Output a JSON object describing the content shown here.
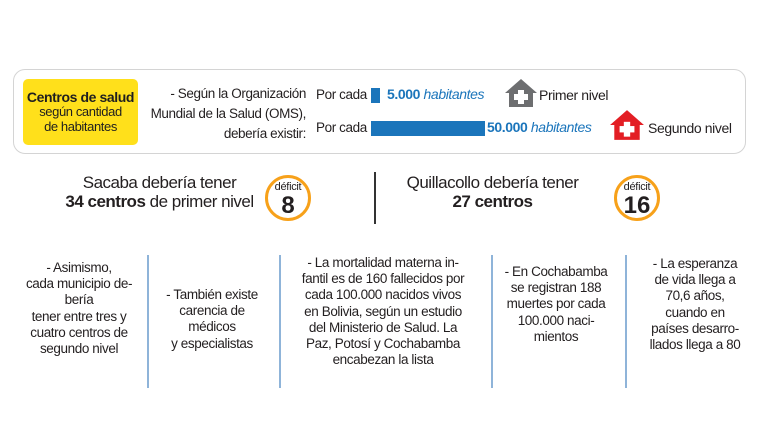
{
  "header": {
    "box_title": "Centros de salud",
    "box_sub1": "según cantidad",
    "box_sub2": "de habitantes",
    "oms_line1": "- Según la Organización",
    "oms_line2": "Mundial de la Salud (OMS),",
    "oms_line3": "debería existir:"
  },
  "levels": [
    {
      "prefix": "Por cada",
      "value": "5.000",
      "unit": "habitantes",
      "label": "Primer nivel",
      "icon": "house-plus-icon",
      "color": "#6d6e70"
    },
    {
      "prefix": "Por cada",
      "value": "50.000",
      "unit": "habitantes",
      "label": "Segundo nivel",
      "icon": "house-plus-icon",
      "color": "#e31e24"
    }
  ],
  "sacaba": {
    "line1": "Sacaba debería tener",
    "strong": "34 centros",
    "rest": " de primer nivel",
    "deficit_label": "déficit",
    "deficit_value": "8"
  },
  "quillacollo": {
    "line1": "Quillacollo debería tener",
    "strong": "27 centros",
    "deficit_label": "déficit",
    "deficit_value": "16"
  },
  "facts": [
    [
      "- Asimismo,",
      "cada municipio de-",
      "bería",
      "tener entre tres y",
      "cuatro centros de",
      "segundo nivel"
    ],
    [
      "- También existe",
      "carencia de",
      "médicos",
      "y especialistas"
    ],
    [
      "- La mortalidad materna in-",
      "fantil es de 160 fallecidos por",
      "cada 100.000 nacidos vivos",
      "en Bolivia, según un estudio",
      "del Ministerio de Salud. La",
      "Paz, Potosí y Cochabamba",
      "encabezan la lista"
    ],
    [
      "- En Cochabamba",
      "se registran 188",
      "muertes por cada",
      "100.000 naci-",
      "mientos"
    ],
    [
      "- La esperanza",
      "de vida llega a",
      "70,6 años,",
      "cuando en",
      "países desarro-",
      "llados llega a 80"
    ]
  ],
  "colors": {
    "accent_yellow": "#ffe01b",
    "bar_blue": "#1b75bb",
    "deficit_orange": "#f7a11a",
    "divider_blue": "#8fb4d9"
  }
}
